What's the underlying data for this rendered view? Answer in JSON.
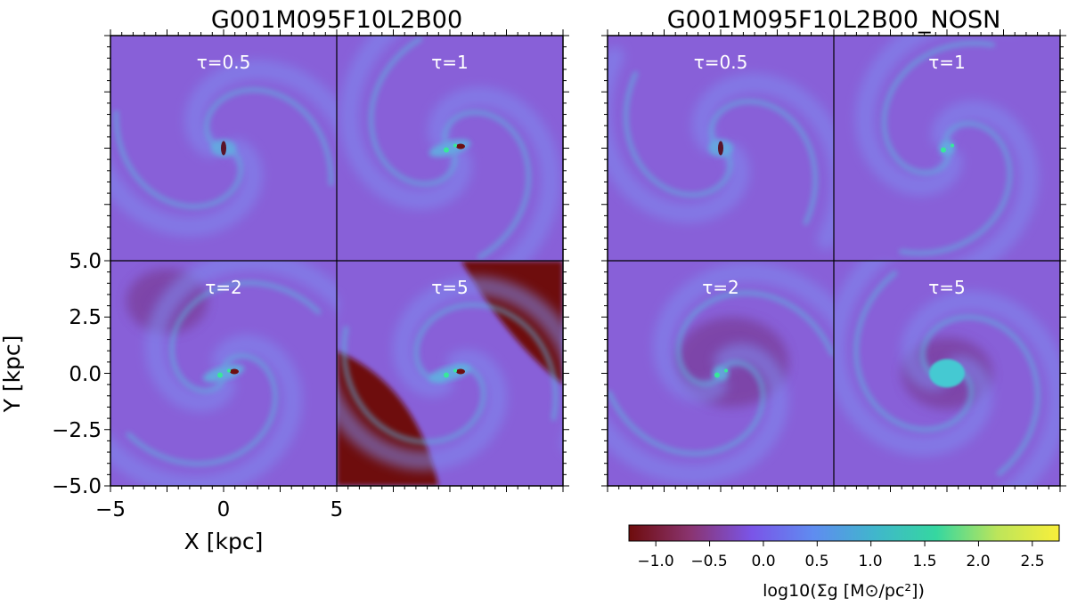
{
  "chart_data": {
    "type": "heatmap",
    "groups": [
      {
        "title": "G001M095F10L2B00",
        "panels": [
          {
            "label": "τ=0.5"
          },
          {
            "label": "τ=1"
          },
          {
            "label": "τ=2"
          },
          {
            "label": "τ=5"
          }
        ]
      },
      {
        "title": "G001M095F10L2B00_NOSN",
        "panels": [
          {
            "label": "τ=0.5"
          },
          {
            "label": "τ=1"
          },
          {
            "label": "τ=2"
          },
          {
            "label": "τ=5"
          }
        ]
      }
    ],
    "xlabel": "X [kpc]",
    "ylabel": "Y [kpc]",
    "xlim": [
      -5,
      5
    ],
    "ylim": [
      -5,
      5
    ],
    "xticks": [
      {
        "value": -5,
        "label": "−5"
      },
      {
        "value": 0,
        "label": "0"
      },
      {
        "value": 5,
        "label": "5"
      }
    ],
    "yticks": [
      {
        "value": 5.0,
        "label": "5.0"
      },
      {
        "value": 2.5,
        "label": "2.5"
      },
      {
        "value": 0.0,
        "label": "0.0"
      },
      {
        "value": -2.5,
        "label": "−2.5"
      },
      {
        "value": -5.0,
        "label": "−5.0"
      }
    ],
    "colorbar": {
      "label": "log10(Σg [M⊙/pc²])",
      "range": [
        -1.25,
        2.75
      ],
      "ticks": [
        {
          "value": -1.0,
          "label": "−1.0"
        },
        {
          "value": -0.5,
          "label": "−0.5"
        },
        {
          "value": 0.0,
          "label": "0.0"
        },
        {
          "value": 0.5,
          "label": "0.5"
        },
        {
          "value": 1.0,
          "label": "1.0"
        },
        {
          "value": 1.5,
          "label": "1.5"
        },
        {
          "value": 2.0,
          "label": "2.0"
        },
        {
          "value": 2.5,
          "label": "2.5"
        }
      ],
      "colors": [
        "#6e0c0c",
        "#8a3470",
        "#7a55e8",
        "#5f8cf0",
        "#40b6cc",
        "#35d7a0",
        "#bde55a",
        "#f9ef3a"
      ]
    },
    "colors": {
      "background": "#8860d8",
      "arm": "#7f8cf0",
      "arm_bright": "#5fb2e0",
      "void": "#6e0e10",
      "hot": "#38e89a"
    }
  }
}
